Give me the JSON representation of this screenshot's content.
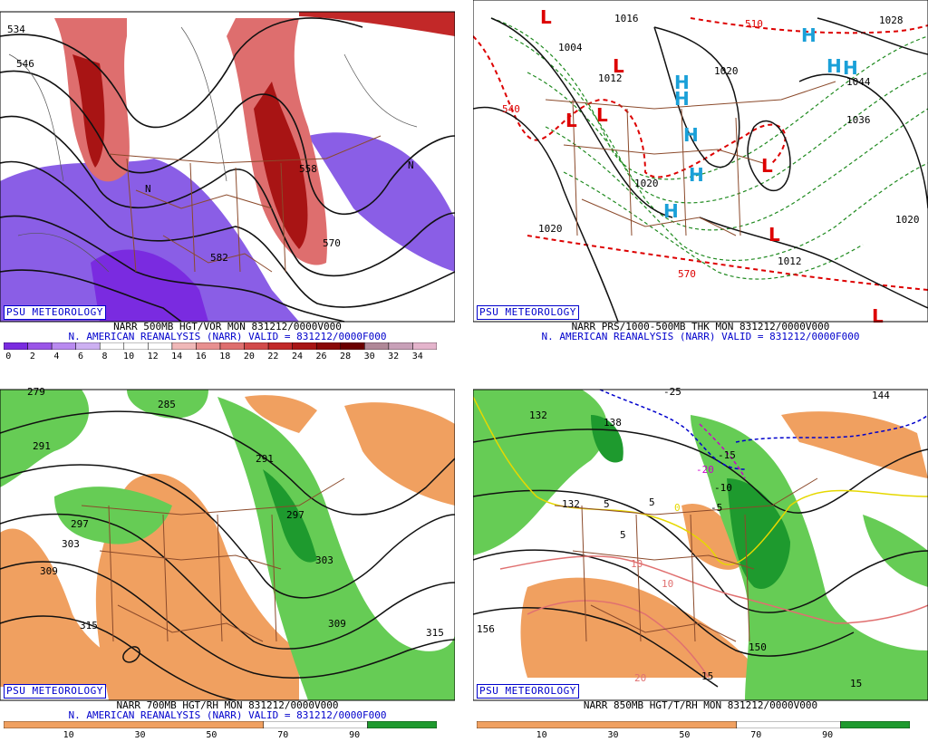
{
  "panels": [
    {
      "id": "vor500",
      "badge": "PSU METEOROLOGY",
      "title_line1": "NARR 500MB HGT/VOR MON 831212/0000V000",
      "title_line2": "N. AMERICAN REANALYSIS (NARR) VALID = 831212/0000F000",
      "scale_labels": [
        "0",
        "2",
        "4",
        "6",
        "8",
        "10",
        "12",
        "14",
        "16",
        "18",
        "20",
        "22",
        "24",
        "26",
        "28",
        "30",
        "32",
        "34"
      ],
      "scale_colors": [
        "#7a2be0",
        "#9a55e8",
        "#b98af0",
        "#cdb0f2",
        "#ffffff",
        "#ffffff",
        "#ffffff",
        "#f0b8b8",
        "#e89090",
        "#de6e6e",
        "#d24a4a",
        "#c22828",
        "#a81414",
        "#8a0808",
        "#6a0000",
        "#b08898",
        "#c8a0b8",
        "#e4b4cc"
      ],
      "contour_labels": [
        "534",
        "546",
        "558",
        "570",
        "582",
        "N"
      ]
    },
    {
      "id": "thk",
      "badge": "PSU METEOROLOGY",
      "title_line1": "NARR PRS/1000-500MB THK MON 831212/0000V000",
      "title_line2": "N. AMERICAN REANALYSIS (NARR) VALID = 831212/0000F000",
      "high_symbol": "H",
      "low_symbol": "L",
      "isobar_labels": [
        "1004",
        "1012",
        "1020",
        "1020",
        "1020",
        "1028",
        "1036",
        "1044",
        "1012",
        "1020",
        "1016"
      ],
      "thickness_labels": [
        "540",
        "570",
        "510"
      ],
      "colors": {
        "high": "#1aa0d8",
        "low": "#dd0000",
        "thickness_cold": "#1f8a1f",
        "thickness_warm": "#dd0000"
      }
    },
    {
      "id": "rh700",
      "badge": "PSU METEOROLOGY",
      "title_line1": "NARR 700MB HGT/RH MON 831212/0000V000",
      "title_line2": "N. AMERICAN REANALYSIS (NARR) VALID = 831212/0000F000",
      "scale_labels": [
        "10",
        "30",
        "50",
        "70",
        "90"
      ],
      "contour_labels": [
        "279",
        "285",
        "291",
        "297",
        "303",
        "309",
        "315",
        "315",
        "303",
        "297",
        "291",
        "309"
      ],
      "colors": {
        "dry": "#f0a060",
        "moist_light": "#66cc55",
        "moist_dark": "#1e9a2e"
      }
    },
    {
      "id": "t850",
      "badge": "PSU METEOROLOGY",
      "title_line1": "NARR 850MB HGT/T/RH MON 831212/0000V000",
      "title_line2": "N. AMERICAN REANALYSIS (NARR) VALID = 831212/0000F000",
      "scale_labels": [
        "10",
        "30",
        "50",
        "70",
        "90"
      ],
      "height_labels": [
        "132",
        "138",
        "144",
        "150",
        "156",
        "132",
        "150"
      ],
      "temp_labels": [
        "-25",
        "-20",
        "-15",
        "-10",
        "-5",
        "0",
        "5",
        "5",
        "5",
        "10",
        "10",
        "15",
        "15",
        "20"
      ],
      "colors": {
        "dry": "#f0a060",
        "moist_light": "#66cc55",
        "moist_dark": "#1e9a2e",
        "isotherm_cold": "#0000cc",
        "isotherm_zero": "#e6d800",
        "isotherm_warm": "#e07070",
        "isotherm_neg": "#cc00cc"
      }
    }
  ]
}
